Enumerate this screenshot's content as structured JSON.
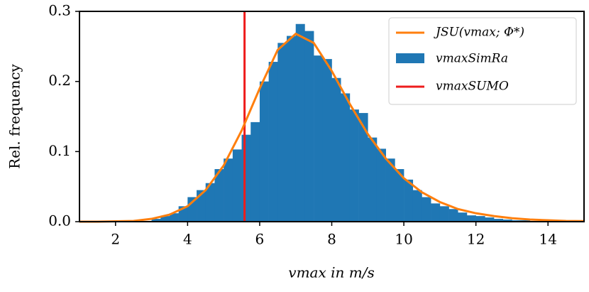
{
  "chart_data": {
    "type": "histogram",
    "x_label": "vmax in m/s",
    "y_label": "Rel. frequency",
    "xlim": [
      1,
      15
    ],
    "ylim": [
      0,
      0.3
    ],
    "xticks": [
      2,
      4,
      6,
      8,
      10,
      12,
      14
    ],
    "yticks": [
      {
        "value": 0,
        "label": "0.0"
      },
      0.1,
      0.2,
      0.3
    ],
    "legend": "upper right",
    "curve": {
      "name": "JSU(vmax; Φ*)",
      "color": "#ff7f0e",
      "x": [
        1,
        1.5,
        2,
        2.5,
        3,
        3.5,
        4,
        4.5,
        5,
        5.5,
        6,
        6.5,
        7,
        7.5,
        8,
        8.5,
        9,
        9.5,
        10,
        10.5,
        11,
        11.5,
        12,
        12.5,
        13,
        13.5,
        14,
        14.5,
        15
      ],
      "values": [
        0,
        0,
        0.0005,
        0.001,
        0.004,
        0.01,
        0.022,
        0.045,
        0.08,
        0.13,
        0.19,
        0.245,
        0.268,
        0.255,
        0.215,
        0.168,
        0.125,
        0.09,
        0.062,
        0.042,
        0.028,
        0.018,
        0.012,
        0.008,
        0.005,
        0.003,
        0.002,
        0.001,
        0.0007
      ]
    },
    "histogram": {
      "name": "vmaxSimRa",
      "color": "#1f77b4",
      "bins": [
        3,
        3.25,
        3.5,
        3.75,
        4,
        4.25,
        4.5,
        4.75,
        5,
        5.25,
        5.5,
        5.75,
        6,
        6.25,
        6.5,
        6.75,
        7,
        7.25,
        7.5,
        7.75,
        8,
        8.25,
        8.5,
        8.75,
        9,
        9.25,
        9.5,
        9.75,
        10,
        10.25,
        10.5,
        10.75,
        11,
        11.25,
        11.5,
        11.75,
        12,
        12.25,
        12.5,
        12.75,
        13,
        13.25,
        13.5,
        13.75,
        14,
        14.25,
        14.5
      ],
      "values": [
        0.004,
        0.008,
        0.012,
        0.022,
        0.035,
        0.045,
        0.055,
        0.075,
        0.09,
        0.103,
        0.124,
        0.142,
        0.2,
        0.228,
        0.255,
        0.265,
        0.282,
        0.272,
        0.237,
        0.232,
        0.205,
        0.183,
        0.16,
        0.155,
        0.12,
        0.104,
        0.09,
        0.075,
        0.06,
        0.045,
        0.035,
        0.026,
        0.022,
        0.018,
        0.013,
        0.009,
        0.008,
        0.006,
        0.004,
        0.003,
        0.002,
        0.002,
        0.001,
        0.001,
        0.0005,
        0.0005
      ]
    },
    "vline": {
      "name": "vmaxSUMO",
      "color": "#ee1c1c",
      "x": 5.58
    }
  }
}
